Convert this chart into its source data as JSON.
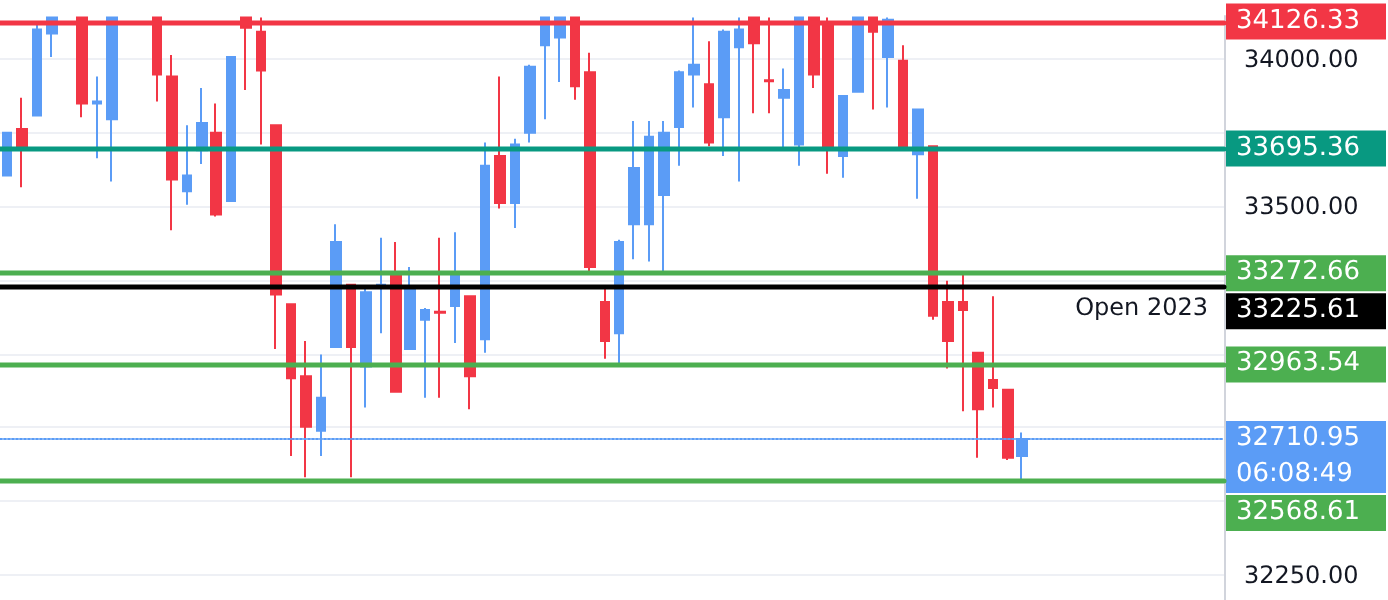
{
  "chart_data": {
    "type": "candlestick",
    "categories": [
      null,
      null,
      null,
      null,
      null,
      null,
      null,
      null,
      null,
      null,
      null,
      null,
      null,
      null,
      null,
      null,
      null,
      null,
      null,
      null,
      null,
      null,
      null,
      null,
      null,
      null,
      null,
      null,
      null,
      null,
      null,
      null,
      null,
      null,
      null,
      null,
      null,
      null,
      null,
      null,
      null,
      null,
      null,
      null,
      null,
      null,
      null,
      null,
      null,
      null,
      null,
      null,
      null,
      null,
      null,
      null,
      null,
      null,
      null,
      null,
      null,
      null,
      null,
      null,
      null,
      null,
      null,
      null,
      null,
      null,
      null,
      null,
      null,
      null,
      null,
      null,
      null,
      null,
      null,
      null,
      null,
      null
    ],
    "ohlc": [
      [
        33604,
        33749,
        33604,
        33749
      ],
      [
        33762,
        33868,
        33564,
        33696
      ],
      [
        33808,
        34125,
        33808,
        34099
      ],
      [
        34086,
        34140,
        34006,
        34140
      ],
      null,
      [
        34140,
        34140,
        33802,
        33848
      ],
      [
        33848,
        33940,
        33663,
        33855
      ],
      [
        33795,
        34140,
        33584,
        34140
      ],
      null,
      null,
      [
        34140,
        34140,
        33855,
        33947
      ],
      [
        33940,
        34013,
        33419,
        33591
      ],
      [
        33551,
        33775,
        33505,
        33604
      ],
      [
        33690,
        33901,
        33643,
        33782
      ],
      [
        33749,
        33848,
        33465,
        33472
      ],
      [
        33518,
        34006,
        33518,
        34006
      ],
      [
        34140,
        34140,
        33894,
        34105
      ],
      [
        34092,
        34140,
        33709,
        33960
      ],
      [
        33775,
        33775,
        33016,
        33201
      ],
      [
        33168,
        33168,
        32653,
        32917
      ],
      [
        32924,
        33043,
        32581,
        32752
      ],
      [
        32739,
        32997,
        32653,
        32851
      ],
      [
        33023,
        33439,
        33023,
        33379
      ],
      [
        33234,
        33234,
        32581,
        33023
      ],
      [
        32957,
        33228,
        32818,
        33208
      ],
      [
        33228,
        33393,
        33069,
        33234
      ],
      [
        33267,
        33379,
        32871,
        32871
      ],
      [
        33016,
        33294,
        33016,
        33221
      ],
      [
        33115,
        33155,
        32851,
        33148
      ],
      [
        33142,
        33393,
        32851,
        33139
      ],
      [
        33162,
        33412,
        33036,
        33274
      ],
      [
        33195,
        33195,
        32812,
        32924
      ],
      [
        33049,
        33716,
        33003,
        33637
      ],
      [
        33670,
        33940,
        33492,
        33511
      ],
      [
        33511,
        33729,
        33426,
        33709
      ],
      [
        33749,
        33980,
        33716,
        33973
      ],
      [
        34046,
        34140,
        33795,
        34140
      ],
      [
        34072,
        34140,
        33921,
        34140
      ],
      [
        34140,
        34140,
        33861,
        33907
      ],
      [
        33954,
        34020,
        33274,
        33294
      ],
      [
        33175,
        33228,
        32983,
        33043
      ],
      [
        33069,
        33386,
        32957,
        33379
      ],
      [
        33439,
        33789,
        33320,
        33630
      ],
      [
        33439,
        33789,
        33313,
        33736
      ],
      [
        33538,
        33789,
        33280,
        33749
      ],
      [
        33769,
        33960,
        33637,
        33954
      ],
      [
        33947,
        34140,
        33835,
        33980
      ],
      [
        33914,
        34059,
        33703,
        33716
      ],
      [
        33802,
        34099,
        33670,
        34092
      ],
      [
        34039,
        34140,
        33584,
        34099
      ],
      [
        34140,
        34140,
        33815,
        34053
      ],
      [
        33927,
        34140,
        33815,
        33924
      ],
      [
        33868,
        33967,
        33690,
        33894
      ],
      [
        33709,
        34140,
        33637,
        34140
      ],
      [
        34140,
        34140,
        33901,
        33947
      ],
      [
        34112,
        34140,
        33610,
        33696
      ],
      [
        33670,
        33874,
        33597,
        33874
      ],
      [
        33888,
        34140,
        33888,
        34140
      ],
      [
        34140,
        34140,
        33828,
        34092
      ],
      [
        34006,
        34140,
        33835,
        34132
      ],
      [
        33993,
        34046,
        33696,
        33696
      ],
      [
        33676,
        33828,
        33525,
        33828
      ],
      [
        33703,
        33703,
        33115,
        33129
      ],
      [
        33175,
        33247,
        32950,
        33043
      ],
      [
        33175,
        33274,
        32805,
        33148
      ],
      [
        33003,
        33003,
        32647,
        32812
      ],
      [
        32911,
        33195,
        32818,
        32884
      ],
      [
        32878,
        32878,
        32640,
        32647
      ],
      [
        32653,
        32733,
        32568,
        32711
      ],
      null,
      null,
      null,
      null,
      null,
      null,
      null,
      null,
      null,
      null,
      null,
      null,
      null
    ],
    "colors": [
      "#5b9cf6",
      "#f23645",
      "#5b9cf6",
      "#5b9cf6",
      null,
      "#f23645",
      "#5b9cf6",
      "#5b9cf6",
      null,
      null,
      "#f23645",
      "#f23645",
      "#5b9cf6",
      "#5b9cf6",
      "#f23645",
      "#5b9cf6",
      "#f23645",
      "#f23645",
      "#f23645",
      "#f23645",
      "#f23645",
      "#5b9cf6",
      "#5b9cf6",
      "#f23645",
      "#5b9cf6",
      "#5b9cf6",
      "#f23645",
      "#5b9cf6",
      "#5b9cf6",
      "#f23645",
      "#5b9cf6",
      "#f23645",
      "#5b9cf6",
      "#f23645",
      "#5b9cf6",
      "#5b9cf6",
      "#5b9cf6",
      "#5b9cf6",
      "#f23645",
      "#f23645",
      "#f23645",
      "#5b9cf6",
      "#5b9cf6",
      "#5b9cf6",
      "#5b9cf6",
      "#5b9cf6",
      "#5b9cf6",
      "#f23645",
      "#5b9cf6",
      "#5b9cf6",
      "#f23645",
      "#f23645",
      "#5b9cf6",
      "#5b9cf6",
      "#f23645",
      "#f23645",
      "#5b9cf6",
      "#5b9cf6",
      "#f23645",
      "#5b9cf6",
      "#f23645",
      "#5b9cf6",
      "#f23645",
      "#f23645",
      "#f23645",
      "#f23645",
      "#f23645",
      "#f23645",
      "#5b9cf6",
      null,
      null,
      null,
      null,
      null,
      null,
      null,
      null,
      null,
      null,
      null,
      null,
      null
    ],
    "ylim": [
      32165,
      34145
    ],
    "yticks": [
      {
        "value": 32250,
        "label": "32250.00"
      },
      {
        "value": 32500,
        "label": null
      },
      {
        "value": 32750,
        "label": null
      },
      {
        "value": 33000,
        "label": null
      },
      {
        "value": 33250,
        "label": null
      },
      {
        "value": 33500,
        "label": "33500.00"
      },
      {
        "value": 33750,
        "label": null
      },
      {
        "value": 34000,
        "label": "34000.00"
      }
    ],
    "ref_lines": [
      {
        "axis": "y",
        "value": 34126.33,
        "label": "34126.33",
        "color": "#f23645"
      },
      {
        "axis": "y",
        "value": 33695.36,
        "label": "33695.36",
        "color": "#089981"
      },
      {
        "axis": "y",
        "value": 33272.66,
        "label": "33272.66",
        "color": "#4caf50"
      },
      {
        "axis": "y",
        "value": 33225.61,
        "label": "33225.61",
        "color": "#000000"
      },
      {
        "axis": "y",
        "value": 32963.54,
        "label": "32963.54",
        "color": "#4caf50"
      },
      {
        "axis": "y",
        "value": 32710.95,
        "label": "32710.95",
        "color": "#5b9cf6",
        "line_style": "dotted"
      },
      {
        "axis": "y",
        "value": 32568.61,
        "label": "32568.61",
        "color": "#4caf50"
      }
    ],
    "annotations": [
      {
        "text": "Open 2023",
        "y": 33225.61
      },
      "06:08:49"
    ],
    "grid": "y",
    "tick_labels": "y"
  }
}
